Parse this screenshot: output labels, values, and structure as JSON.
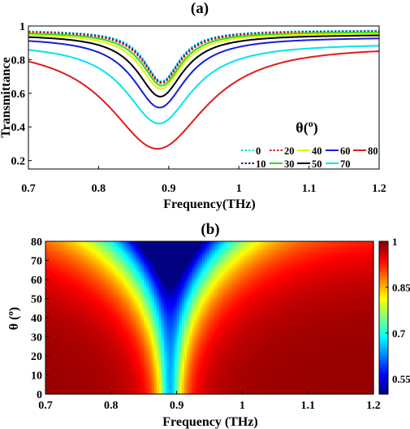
{
  "chart_data": [
    {
      "panel": "(a)",
      "type": "line",
      "xlabel": "Frequency(THz)",
      "ylabel": "Transmittance",
      "xlim": [
        0.7,
        1.2
      ],
      "ylim": [
        0.15,
        1.0
      ],
      "x_ticks": [
        "0.7",
        "0.8",
        "0.9",
        "1",
        "1.1",
        "1.2"
      ],
      "y_ticks": [
        "0.2",
        "0.4",
        "0.6",
        "0.8",
        "1"
      ],
      "legend_title_symbol": "θ(",
      "legend_title_sup": "o",
      "legend_title_close": ")",
      "legend_placement": "bottom-right, 4 columns",
      "series": [
        {
          "name": "0",
          "color": "#00e5ee",
          "style": "dotted",
          "min_freq": 0.89,
          "min_T": 0.672,
          "far_T": 0.975,
          "width": 0.03
        },
        {
          "name": "10",
          "color": "#1a1aaa",
          "style": "dotted",
          "min_freq": 0.89,
          "min_T": 0.665,
          "far_T": 0.972,
          "width": 0.031
        },
        {
          "name": "20",
          "color": "#e11b1b",
          "style": "dotted",
          "min_freq": 0.89,
          "min_T": 0.66,
          "far_T": 0.97,
          "width": 0.032
        },
        {
          "name": "30",
          "color": "#19e619",
          "style": "solid",
          "min_freq": 0.89,
          "min_T": 0.645,
          "far_T": 0.965,
          "width": 0.034
        },
        {
          "name": "40",
          "color": "#eeee00",
          "style": "solid",
          "min_freq": 0.889,
          "min_T": 0.625,
          "far_T": 0.958,
          "width": 0.036
        },
        {
          "name": "50",
          "color": "#000000",
          "style": "solid",
          "min_freq": 0.888,
          "min_T": 0.58,
          "far_T": 0.95,
          "width": 0.04
        },
        {
          "name": "60",
          "color": "#1a1adc",
          "style": "solid",
          "min_freq": 0.887,
          "min_T": 0.515,
          "far_T": 0.935,
          "width": 0.046
        },
        {
          "name": "70",
          "color": "#00e5ee",
          "style": "solid",
          "min_freq": 0.886,
          "min_T": 0.42,
          "far_T": 0.9,
          "width": 0.058
        },
        {
          "name": "80",
          "color": "#e11b1b",
          "style": "solid",
          "min_freq": 0.884,
          "min_T": 0.27,
          "far_T": 0.9,
          "width": 0.085
        }
      ]
    },
    {
      "panel": "(b)",
      "type": "heatmap",
      "xlabel": "Frequency (THz)",
      "ylabel_symbol": "θ (",
      "ylabel_sup": "o",
      "ylabel_close": ")",
      "xlim": [
        0.7,
        1.2
      ],
      "ylim": [
        0,
        80
      ],
      "x_ticks": [
        "0.7",
        "0.8",
        "0.9",
        "1",
        "1.1",
        "1.2"
      ],
      "y_ticks": [
        "0",
        "10",
        "20",
        "30",
        "40",
        "50",
        "60",
        "70",
        "80"
      ],
      "colorbar_range": [
        0.5,
        1.0
      ],
      "colorbar_ticks": [
        "0.55",
        "0.7",
        "0.85",
        "1"
      ],
      "colormap": "jet",
      "description_of_values": "transmittance vs frequency and incidence angle; dip centered near 0.89 THz broadening and deepening with angle"
    }
  ]
}
